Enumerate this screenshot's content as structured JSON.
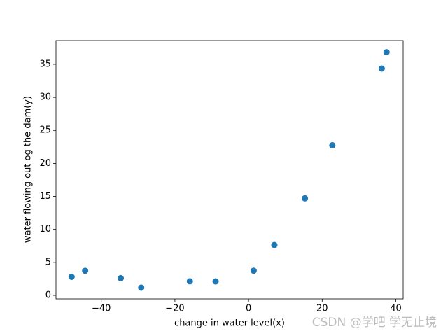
{
  "chart_data": {
    "type": "scatter",
    "xlabel": "change in water level(x)",
    "ylabel": "water flowing out og the dam(y)",
    "x": [
      -15.94,
      -29.15,
      36.19,
      37.49,
      -48.06,
      -8.94,
      15.31,
      -34.71,
      1.39,
      -44.38,
      7.01,
      22.76
    ],
    "values": [
      2.13,
      1.17,
      34.36,
      36.84,
      2.81,
      2.12,
      14.71,
      2.61,
      3.74,
      3.73,
      7.63,
      22.75
    ],
    "color": "#1f77b4",
    "xlim": [
      -52.3,
      42.0
    ],
    "ylim": [
      -0.53,
      38.6
    ],
    "xticks": [
      {
        "value": -40,
        "label": "−40"
      },
      {
        "value": -20,
        "label": "−20"
      },
      0,
      20,
      40
    ],
    "yticks": [
      0,
      5,
      10,
      15,
      20,
      25,
      30,
      35
    ],
    "grid": false
  },
  "watermark": "CSDN @学吧 学无止境"
}
